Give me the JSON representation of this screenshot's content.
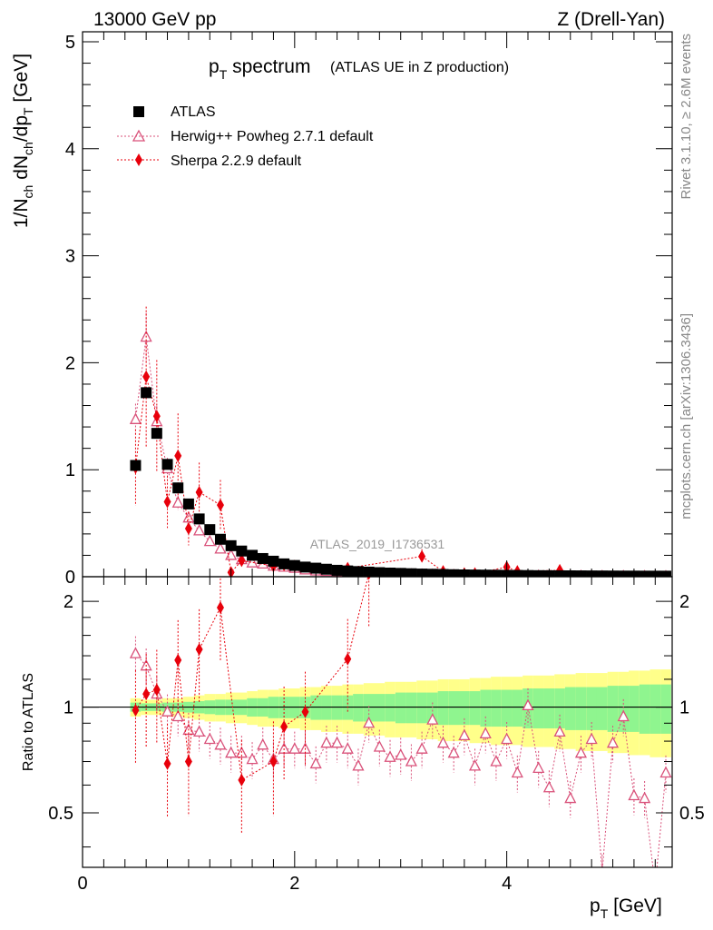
{
  "header": {
    "left": "13000 GeV pp",
    "right": "Z (Drell-Yan)"
  },
  "title": {
    "main": "p",
    "main_sub": "T",
    "main_rest": " spectrum",
    "small": "(ATLAS UE in Z production)"
  },
  "side_labels": {
    "rivet": "Rivet 3.1.10, ≥ 2.6M events",
    "mcplots": "mcplots.cern.ch [arXiv:1306.3436]"
  },
  "analysis_label": "ATLAS_2019_I1736531",
  "axes": {
    "ylabel_main": "1/N_ch dN_ch/dp_T [GeV]",
    "ylabel_ratio": "Ratio to ATLAS",
    "xlabel": "p_T [GeV]"
  },
  "legend": [
    {
      "name": "ATLAS",
      "marker": "square",
      "color": "#000000"
    },
    {
      "name": "Herwig++ Powheg 2.7.1 default",
      "marker": "open-triangle",
      "color": "#d9517a"
    },
    {
      "name": "Sherpa 2.2.9 default",
      "marker": "diamond",
      "color": "#e8000b"
    }
  ],
  "chart_data": [
    {
      "type": "scatter",
      "panel": "main",
      "xlim": [
        0,
        5.5
      ],
      "ylim": [
        0,
        5
      ],
      "x_ticks": [
        0,
        2,
        4
      ],
      "y_ticks": [
        0,
        1,
        2,
        3,
        4,
        5
      ],
      "x": [
        0.5,
        0.6,
        0.7,
        0.8,
        0.9,
        1.0,
        1.1,
        1.2,
        1.3,
        1.4,
        1.5,
        1.6,
        1.7,
        1.8,
        1.9,
        2.0,
        2.1,
        2.2,
        2.3,
        2.4,
        2.5,
        2.6,
        2.7,
        2.8,
        2.9,
        3.0,
        3.1,
        3.2,
        3.3,
        3.4,
        3.5,
        3.6,
        3.7,
        3.8,
        3.9,
        4.0,
        4.1,
        4.2,
        4.3,
        4.4,
        4.5,
        4.6,
        4.7,
        4.8,
        4.9,
        5.0,
        5.1,
        5.2,
        5.3,
        5.4,
        5.5
      ],
      "series": [
        {
          "name": "ATLAS",
          "values": [
            1.04,
            1.72,
            1.34,
            1.05,
            0.83,
            0.68,
            0.54,
            0.44,
            0.35,
            0.29,
            0.24,
            0.2,
            0.17,
            0.145,
            0.12,
            0.105,
            0.09,
            0.08,
            0.07,
            0.06,
            0.054,
            0.048,
            0.043,
            0.038,
            0.034,
            0.031,
            0.028,
            0.025,
            0.023,
            0.021,
            0.019,
            0.017,
            0.016,
            0.015,
            0.014,
            0.013,
            0.012,
            0.011,
            0.01,
            0.0095,
            0.009,
            0.0085,
            0.008,
            0.0075,
            0.007,
            0.0065,
            0.006,
            0.0058,
            0.0055,
            0.0052,
            0.005
          ]
        },
        {
          "name": "Herwig++ Powheg 2.7.1 default",
          "values": [
            1.47,
            2.24,
            1.45,
            1.01,
            0.69,
            0.55,
            0.43,
            0.33,
            0.26,
            0.2,
            0.16,
            0.13,
            0.12,
            0.1,
            0.09,
            0.08,
            0.065,
            0.055,
            0.05,
            0.045,
            0.04,
            0.035,
            0.032,
            0.028,
            0.025,
            0.022,
            0.02,
            0.018,
            0.017,
            0.016,
            0.014,
            0.013,
            0.012,
            0.011,
            0.011,
            0.01,
            0.009,
            0.009,
            0.008,
            0.007,
            0.007,
            0.007,
            0.006,
            0.006,
            0.005,
            0.005,
            0.005,
            0.004,
            0.004,
            0.003,
            0.003
          ]
        },
        {
          "name": "Sherpa 2.2.9 default",
          "x": [
            0.5,
            0.6,
            0.7,
            0.8,
            0.9,
            1.0,
            1.1,
            1.3,
            1.4,
            1.5,
            1.8,
            1.9,
            2.0,
            2.5,
            3.2,
            3.4,
            3.6,
            3.7,
            4.0,
            4.1,
            4.5
          ],
          "values": [
            1.02,
            1.87,
            1.5,
            0.7,
            1.13,
            0.45,
            0.79,
            0.67,
            0.04,
            0.15,
            0.1,
            0.11,
            0.1,
            0.08,
            0.19,
            0.05,
            0.03,
            0.03,
            0.09,
            0.05,
            0.06
          ]
        }
      ]
    },
    {
      "type": "scatter",
      "panel": "ratio",
      "xlim": [
        0,
        5.5
      ],
      "ylim": [
        0.35,
        2.35
      ],
      "y_ticks": [
        0.5,
        1,
        2
      ],
      "x_ticks": [
        0,
        2,
        4
      ],
      "x": [
        0.5,
        0.6,
        0.7,
        0.8,
        0.9,
        1.0,
        1.1,
        1.2,
        1.3,
        1.4,
        1.5,
        1.6,
        1.7,
        1.8,
        1.9,
        2.0,
        2.1,
        2.2,
        2.3,
        2.4,
        2.5,
        2.6,
        2.7,
        2.8,
        2.9,
        3.0,
        3.1,
        3.2,
        3.3,
        3.4,
        3.5,
        3.6,
        3.7,
        3.8,
        3.9,
        4.0,
        4.1,
        4.2,
        4.3,
        4.4,
        4.5,
        4.6,
        4.7,
        4.8,
        4.9,
        5.0,
        5.1,
        5.2,
        5.3,
        5.4,
        5.5
      ],
      "series": [
        {
          "name": "Herwig++ Powheg 2.7.1 default",
          "values": [
            1.42,
            1.31,
            1.09,
            0.97,
            0.94,
            0.86,
            0.85,
            0.81,
            0.78,
            0.74,
            0.74,
            0.71,
            0.78,
            0.71,
            0.76,
            0.76,
            0.76,
            0.69,
            0.79,
            0.79,
            0.76,
            0.68,
            0.9,
            0.77,
            0.72,
            0.73,
            0.7,
            0.76,
            0.92,
            0.79,
            0.74,
            0.83,
            0.68,
            0.84,
            0.7,
            0.81,
            0.65,
            1.01,
            0.67,
            0.59,
            0.85,
            0.55,
            0.74,
            0.81,
            0.34,
            0.79,
            0.94,
            0.56,
            0.55,
            0.31,
            0.65
          ]
        },
        {
          "name": "Sherpa 2.2.9 default",
          "x": [
            0.5,
            0.6,
            0.7,
            0.8,
            0.9,
            1.0,
            1.1,
            1.3,
            1.5,
            1.8,
            1.9,
            2.1,
            2.5,
            2.7
          ],
          "values": [
            0.98,
            1.09,
            1.12,
            0.69,
            1.36,
            0.7,
            1.46,
            1.92,
            0.62,
            0.7,
            0.88,
            0.97,
            1.37,
            2.4
          ]
        }
      ],
      "band_inner_half_width": [
        0.03,
        0.025,
        0.025,
        0.03,
        0.03,
        0.035,
        0.04,
        0.045,
        0.05,
        0.05,
        0.05,
        0.06,
        0.06,
        0.07,
        0.07,
        0.07,
        0.07,
        0.08,
        0.08,
        0.08,
        0.08,
        0.09,
        0.09,
        0.09,
        0.09,
        0.1,
        0.1,
        0.1,
        0.1,
        0.11,
        0.11,
        0.11,
        0.11,
        0.12,
        0.12,
        0.12,
        0.12,
        0.13,
        0.13,
        0.13,
        0.13,
        0.14,
        0.14,
        0.14,
        0.14,
        0.15,
        0.15,
        0.15,
        0.16,
        0.16,
        0.16
      ],
      "band_outer_half_width": [
        0.06,
        0.05,
        0.05,
        0.06,
        0.06,
        0.07,
        0.08,
        0.09,
        0.09,
        0.1,
        0.1,
        0.11,
        0.12,
        0.12,
        0.13,
        0.13,
        0.14,
        0.14,
        0.15,
        0.15,
        0.16,
        0.16,
        0.17,
        0.17,
        0.18,
        0.18,
        0.18,
        0.19,
        0.19,
        0.2,
        0.2,
        0.2,
        0.21,
        0.21,
        0.22,
        0.22,
        0.22,
        0.23,
        0.23,
        0.23,
        0.24,
        0.24,
        0.25,
        0.25,
        0.25,
        0.26,
        0.26,
        0.27,
        0.27,
        0.28,
        0.28
      ],
      "colors": {
        "inner_band": "#8ff58f",
        "outer_band": "#ffff8a",
        "reference_line": "#000000"
      }
    }
  ]
}
